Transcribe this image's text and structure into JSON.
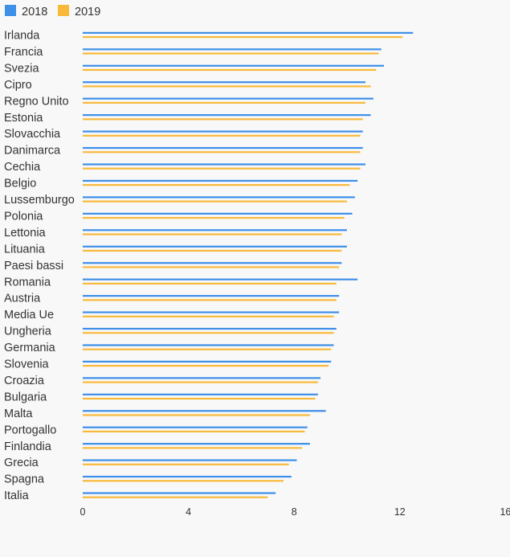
{
  "chart_data": {
    "type": "bar",
    "orientation": "horizontal",
    "title": "",
    "xlabel": "",
    "ylabel": "",
    "xlim": [
      0,
      16
    ],
    "x_ticks": [
      "0",
      "4",
      "8",
      "12",
      "16"
    ],
    "grid": false,
    "legend_position": "top-left",
    "categories": [
      "Irlanda",
      "Francia",
      "Svezia",
      "Cipro",
      "Regno Unito",
      "Estonia",
      "Slovacchia",
      "Danimarca",
      "Cechia",
      "Belgio",
      "Lussemburgo",
      "Polonia",
      "Lettonia",
      "Lituania",
      "Paesi bassi",
      "Romania",
      "Austria",
      "Media Ue",
      "Ungheria",
      "Germania",
      "Slovenia",
      "Croazia",
      "Bulgaria",
      "Malta",
      "Portogallo",
      "Finlandia",
      "Grecia",
      "Spagna",
      "Italia"
    ],
    "series": [
      {
        "name": "2018",
        "color": "#3d8fe8",
        "values": [
          12.5,
          11.3,
          11.4,
          10.7,
          11.0,
          10.9,
          10.6,
          10.6,
          10.7,
          10.4,
          10.3,
          10.2,
          10.0,
          10.0,
          9.8,
          10.4,
          9.7,
          9.7,
          9.6,
          9.5,
          9.4,
          9.0,
          8.9,
          9.2,
          8.5,
          8.6,
          8.1,
          7.9,
          7.3
        ]
      },
      {
        "name": "2019",
        "color": "#f8b93a",
        "values": [
          12.1,
          11.2,
          11.1,
          10.9,
          10.7,
          10.6,
          10.5,
          10.5,
          10.5,
          10.1,
          10.0,
          9.9,
          9.8,
          9.8,
          9.7,
          9.6,
          9.6,
          9.5,
          9.5,
          9.4,
          9.3,
          8.9,
          8.8,
          8.6,
          8.4,
          8.3,
          7.8,
          7.6,
          7.0
        ]
      }
    ]
  }
}
